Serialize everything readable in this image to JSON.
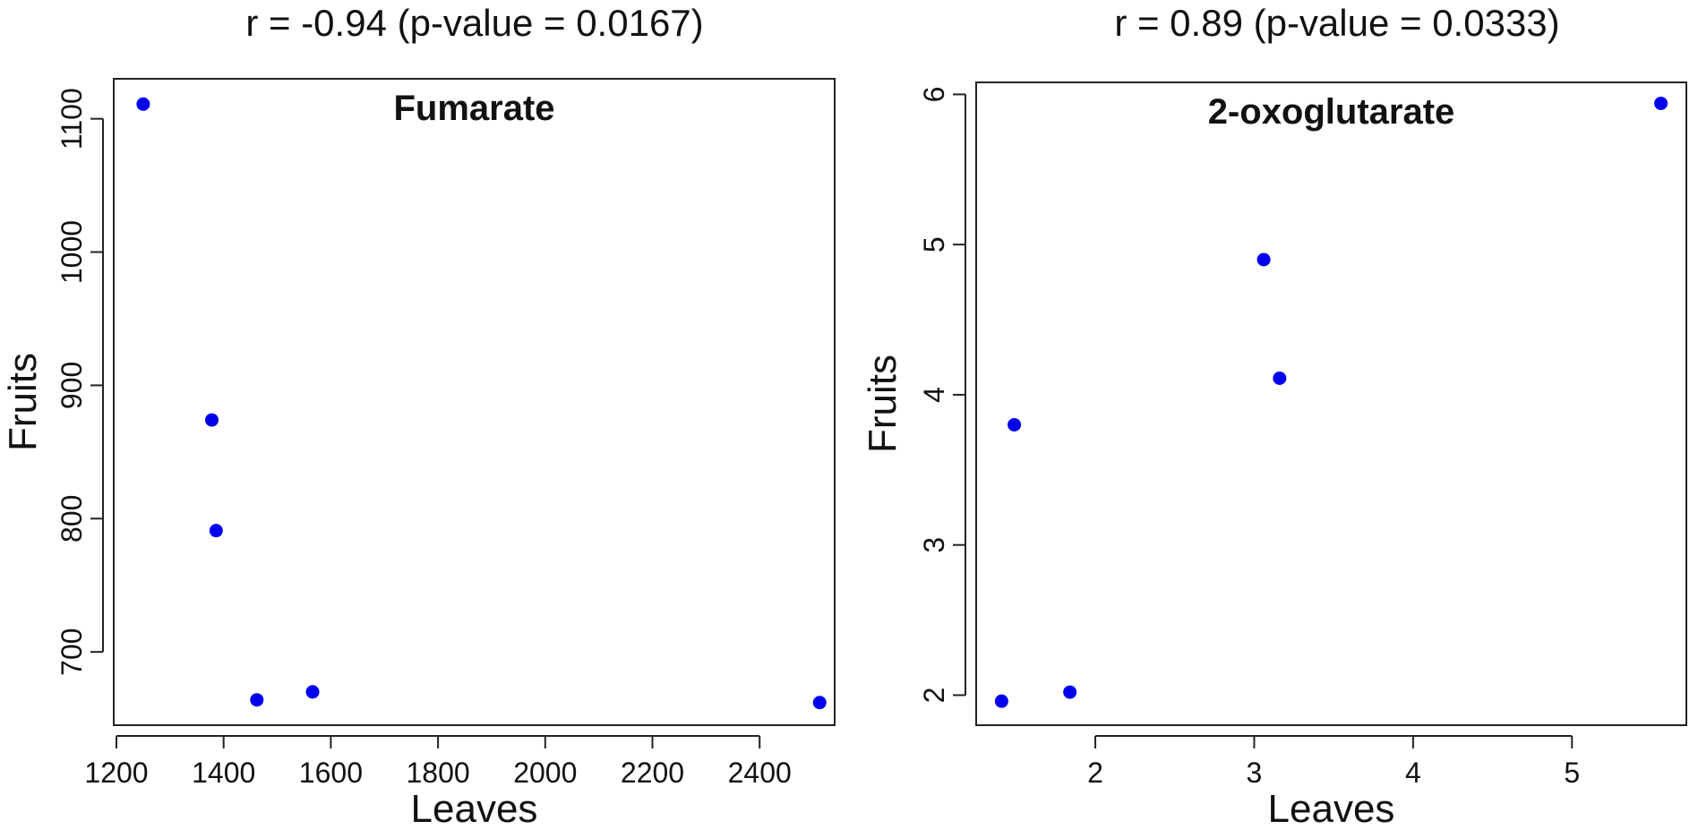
{
  "chart_data": [
    {
      "type": "scatter",
      "title": "r = -0.94 (p-value = 0.0167)",
      "subtitle": "Fumarate",
      "xlabel": "Leaves",
      "ylabel": "Fruits",
      "xlim": [
        1195,
        2540
      ],
      "ylim": [
        645,
        1130
      ],
      "xticks": [
        1200,
        1400,
        1600,
        1800,
        2000,
        2200,
        2400
      ],
      "yticks": [
        700,
        800,
        900,
        1000,
        1100
      ],
      "point_color": "#0000ee",
      "grid": false,
      "series": [
        {
          "x": [
            1250,
            1378,
            1386,
            1462,
            1566,
            2512
          ],
          "y": [
            1111,
            874,
            791,
            664,
            670,
            662
          ]
        }
      ]
    },
    {
      "type": "scatter",
      "title": "r = 0.89 (p-value = 0.0333)",
      "subtitle": "2-oxoglutarate",
      "xlabel": "Leaves",
      "ylabel": "Fruits",
      "xlim": [
        1.25,
        5.72
      ],
      "ylim": [
        1.8,
        6.08
      ],
      "xticks": [
        2,
        3,
        4,
        5
      ],
      "yticks": [
        2,
        3,
        4,
        5,
        6
      ],
      "point_color": "#0000ee",
      "grid": false,
      "series": [
        {
          "x": [
            1.41,
            1.49,
            1.84,
            3.06,
            3.16,
            5.56
          ],
          "y": [
            1.96,
            3.8,
            2.02,
            4.9,
            4.11,
            5.94
          ]
        }
      ]
    }
  ]
}
